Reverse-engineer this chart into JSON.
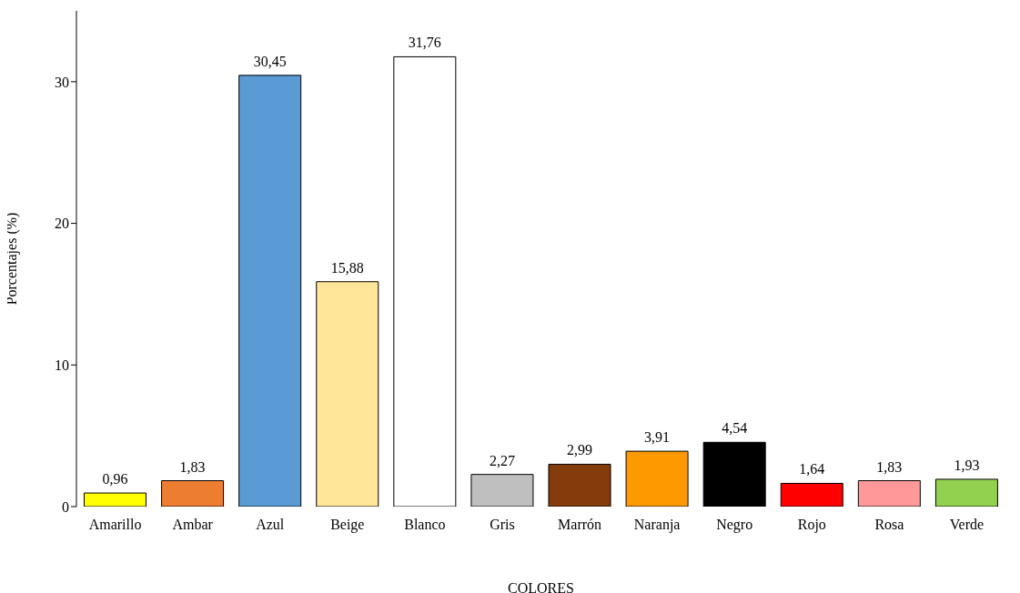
{
  "chart_data": {
    "type": "bar",
    "xlabel": "COLORES",
    "ylabel": "Porcentajes  (%)",
    "categories": [
      "Amarillo",
      "Ambar",
      "Azul",
      "Beige",
      "Blanco",
      "Gris",
      "Marrón",
      "Naranja",
      "Negro",
      "Rojo",
      "Rosa",
      "Verde"
    ],
    "values": [
      0.96,
      1.83,
      30.45,
      15.88,
      31.76,
      2.27,
      2.99,
      3.91,
      4.54,
      1.64,
      1.83,
      1.93
    ],
    "value_labels": [
      "0,96",
      "1,83",
      "30,45",
      "15,88",
      "31,76",
      "2,27",
      "2,99",
      "3,91",
      "4,54",
      "1,64",
      "1,83",
      "1,93"
    ],
    "colors": [
      "#ffff00",
      "#ed7d31",
      "#5b9bd5",
      "#ffe699",
      "#ffffff",
      "#bfbfbf",
      "#843c0c",
      "#ff9900",
      "#000000",
      "#ff0000",
      "#ff9999",
      "#92d050"
    ],
    "ylim": [
      0,
      35
    ],
    "yticks": [
      0,
      10,
      20,
      30
    ]
  }
}
